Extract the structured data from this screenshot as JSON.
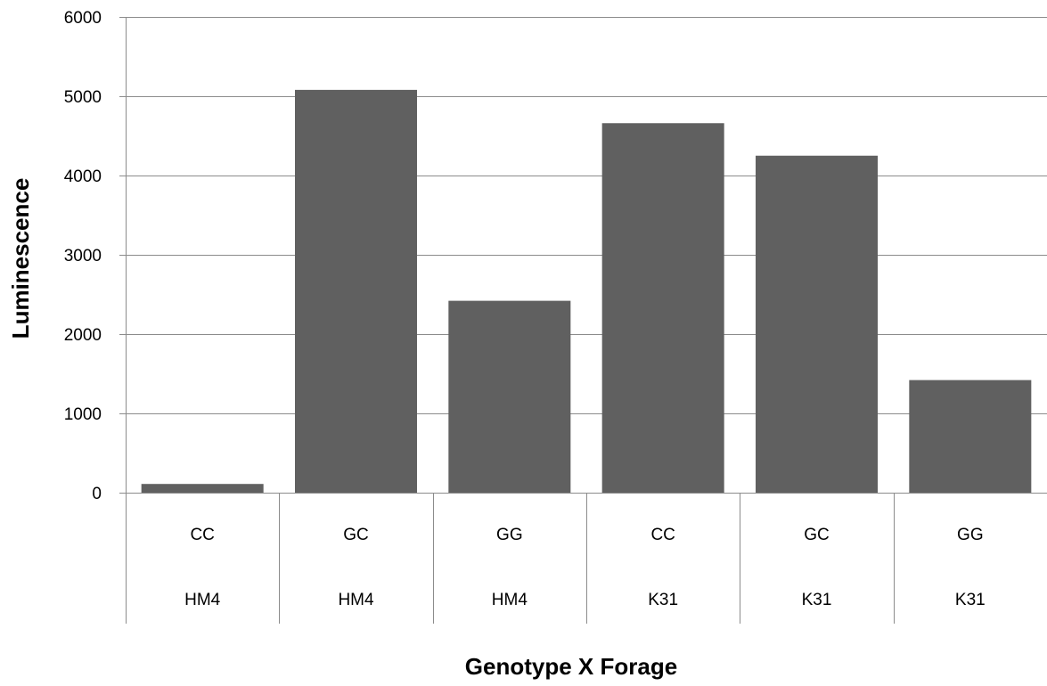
{
  "chart_data": {
    "type": "bar",
    "title": "",
    "xlabel": "Genotype X Forage",
    "ylabel": "Luminescence",
    "ylim": [
      0,
      6000
    ],
    "yticks": [
      0,
      1000,
      2000,
      3000,
      4000,
      5000,
      6000
    ],
    "grid": true,
    "legend": "none",
    "categories": [
      {
        "genotype": "CC",
        "forage": "HM4"
      },
      {
        "genotype": "GC",
        "forage": "HM4"
      },
      {
        "genotype": "GG",
        "forage": "HM4"
      },
      {
        "genotype": "CC",
        "forage": "K31"
      },
      {
        "genotype": "GC",
        "forage": "K31"
      },
      {
        "genotype": "GG",
        "forage": "K31"
      }
    ],
    "values": [
      110,
      5080,
      2420,
      4660,
      4250,
      1420
    ],
    "colors": {
      "bar": "#606060",
      "grid": "#8c8c8c",
      "axis": "#8c8c8c"
    }
  }
}
